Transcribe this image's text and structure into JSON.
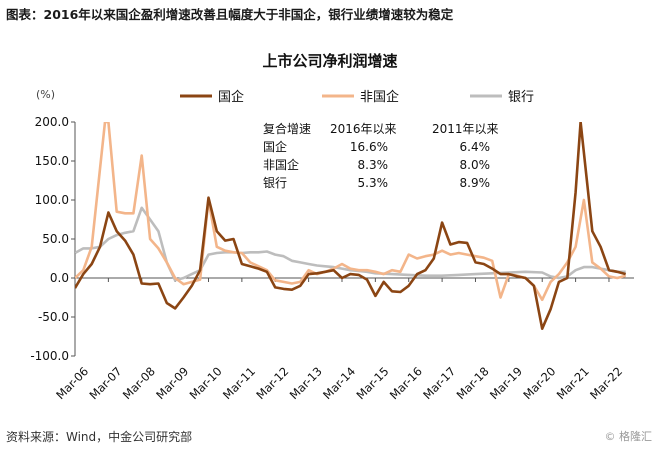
{
  "caption": "图表：2016年以来国企盈利增速改善且幅度大于非国企，银行业绩增速较为稳定",
  "source": "资料来源：Wind，中金公司研究部",
  "watermark_top": "格隆汇",
  "watermark_bottom": "© 格隆汇",
  "chart_data": {
    "type": "line",
    "title": "上市公司净利润增速",
    "ylabel": "(%)",
    "xlabel": "",
    "ylim": [
      -100,
      200
    ],
    "yticks": [
      "200.0",
      "150.0",
      "100.0",
      "50.0",
      "0.0",
      "-50.0",
      "-100.0"
    ],
    "ytick_values": [
      200,
      150,
      100,
      50,
      0,
      -50,
      -100
    ],
    "x_tick_labels": [
      "Mar-06",
      "Mar-07",
      "Mar-08",
      "Mar-09",
      "Mar-10",
      "Mar-11",
      "Mar-12",
      "Mar-13",
      "Mar-14",
      "Mar-15",
      "Mar-16",
      "Mar-17",
      "Mar-18",
      "Mar-19",
      "Mar-20",
      "Mar-21",
      "Mar-22"
    ],
    "x_tick_values": [
      2006,
      2007,
      2008,
      2009,
      2010,
      2011,
      2012,
      2013,
      2014,
      2015,
      2016,
      2017,
      2018,
      2019,
      2020,
      2021,
      2022
    ],
    "xlim": [
      2006,
      2022.75
    ],
    "legend": [
      "国企",
      "非国企",
      "银行"
    ],
    "legend_position": "top",
    "series": [
      {
        "name": "国企",
        "color": "#8B4513",
        "width": 2.6,
        "x": [
          2006,
          2006.25,
          2006.5,
          2006.75,
          2007,
          2007.25,
          2007.5,
          2007.75,
          2008,
          2008.25,
          2008.5,
          2008.75,
          2009,
          2009.25,
          2009.5,
          2009.75,
          2010,
          2010.25,
          2010.5,
          2010.75,
          2011,
          2011.25,
          2011.5,
          2011.75,
          2012,
          2012.25,
          2012.5,
          2012.75,
          2013,
          2013.25,
          2013.5,
          2013.75,
          2014,
          2014.25,
          2014.5,
          2014.75,
          2015,
          2015.25,
          2015.5,
          2015.75,
          2016,
          2016.25,
          2016.5,
          2016.75,
          2017,
          2017.25,
          2017.5,
          2017.75,
          2018,
          2018.25,
          2018.5,
          2018.75,
          2019,
          2019.25,
          2019.5,
          2019.75,
          2020,
          2020.25,
          2020.5,
          2020.75,
          2021,
          2021.15,
          2021.35,
          2021.5,
          2021.75,
          2022,
          2022.25,
          2022.5
        ],
        "y": [
          -13,
          5,
          18,
          40,
          84,
          60,
          48,
          30,
          -7,
          -8,
          -7,
          -32,
          -39,
          -25,
          -10,
          10,
          103,
          60,
          48,
          50,
          18,
          15,
          12,
          8,
          -12,
          -14,
          -15,
          -10,
          5,
          6,
          8,
          10,
          0,
          5,
          4,
          -2,
          -23,
          -5,
          -17,
          -18,
          -10,
          5,
          10,
          25,
          71,
          43,
          46,
          45,
          20,
          18,
          12,
          5,
          5,
          2,
          0,
          -10,
          -65,
          -40,
          -5,
          0,
          110,
          200,
          120,
          60,
          40,
          10,
          8,
          5
        ]
      },
      {
        "name": "非国企",
        "color": "#F3B58A",
        "width": 2.6,
        "x": [
          2006,
          2006.25,
          2006.5,
          2006.75,
          2006.9,
          2007,
          2007.25,
          2007.5,
          2007.75,
          2008,
          2008.25,
          2008.5,
          2008.75,
          2009,
          2009.25,
          2009.5,
          2009.75,
          2010,
          2010.25,
          2010.5,
          2010.75,
          2011,
          2011.25,
          2011.5,
          2011.75,
          2012,
          2012.25,
          2012.5,
          2012.75,
          2013,
          2013.25,
          2013.5,
          2013.75,
          2014,
          2014.25,
          2014.5,
          2014.75,
          2015,
          2015.25,
          2015.5,
          2015.75,
          2016,
          2016.25,
          2016.5,
          2016.75,
          2017,
          2017.25,
          2017.5,
          2017.75,
          2018,
          2018.25,
          2018.5,
          2018.75,
          2019,
          2019.25,
          2019.5,
          2019.75,
          2020,
          2020.25,
          2020.5,
          2020.75,
          2021,
          2021.25,
          2021.5,
          2021.75,
          2022,
          2022.25,
          2022.5
        ],
        "y": [
          0,
          10,
          40,
          140,
          200,
          200,
          85,
          83,
          83,
          157,
          50,
          38,
          20,
          0,
          -8,
          -5,
          -2,
          100,
          40,
          35,
          33,
          32,
          20,
          15,
          10,
          -3,
          -5,
          -7,
          -5,
          10,
          5,
          8,
          12,
          18,
          12,
          10,
          10,
          8,
          5,
          10,
          8,
          30,
          25,
          28,
          30,
          35,
          30,
          32,
          30,
          28,
          26,
          22,
          -25,
          5,
          3,
          0,
          -10,
          -28,
          -5,
          5,
          20,
          40,
          100,
          20,
          12,
          2,
          0,
          3
        ]
      },
      {
        "name": "银行",
        "color": "#BDBDBD",
        "width": 2.6,
        "x": [
          2006,
          2006.25,
          2006.5,
          2006.75,
          2007,
          2007.25,
          2007.5,
          2007.75,
          2008,
          2008.25,
          2008.5,
          2008.75,
          2009,
          2009.25,
          2009.5,
          2009.75,
          2010,
          2010.25,
          2010.5,
          2010.75,
          2011,
          2011.25,
          2011.5,
          2011.75,
          2012,
          2012.25,
          2012.5,
          2012.75,
          2013,
          2013.25,
          2013.5,
          2013.75,
          2014,
          2014.25,
          2014.5,
          2014.75,
          2015,
          2015.5,
          2016,
          2016.5,
          2017,
          2017.5,
          2018,
          2018.5,
          2019,
          2019.5,
          2020,
          2020.25,
          2020.5,
          2020.75,
          2021,
          2021.25,
          2021.5,
          2021.75,
          2022,
          2022.25,
          2022.5
        ],
        "y": [
          32,
          38,
          38,
          40,
          50,
          55,
          58,
          60,
          90,
          75,
          60,
          20,
          -3,
          0,
          5,
          10,
          30,
          32,
          33,
          33,
          32,
          33,
          33,
          34,
          30,
          28,
          22,
          20,
          18,
          16,
          15,
          14,
          12,
          10,
          9,
          8,
          6,
          5,
          4,
          3,
          3,
          4,
          5,
          6,
          7,
          8,
          7,
          2,
          0,
          2,
          10,
          14,
          14,
          12,
          10,
          8,
          8
        ]
      }
    ],
    "annotation_table": {
      "headers": [
        "复合增速",
        "2016年以来",
        "2011年以来"
      ],
      "rows": [
        [
          "国企",
          "16.6%",
          "6.4%"
        ],
        [
          "非国企",
          "8.3%",
          "8.0%"
        ],
        [
          "银行",
          "5.3%",
          "8.9%"
        ]
      ]
    }
  }
}
